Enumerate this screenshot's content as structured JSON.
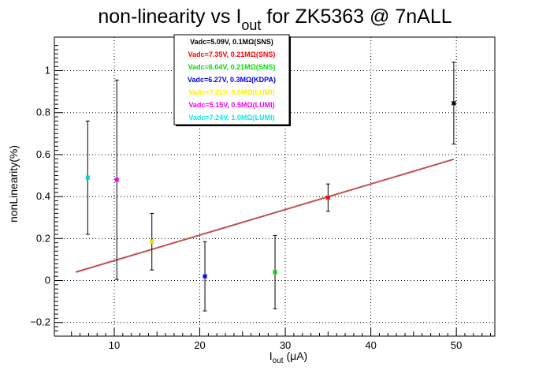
{
  "chart_data": {
    "type": "scatter",
    "title_main": "non-linearity vs I",
    "title_sub": "out",
    "title_tail": " for ZK5363 @ 7nALL",
    "xlabel_main": "I",
    "xlabel_sub": "out",
    "xlabel_tail": " (μA)",
    "ylabel": "nonLinearity(%)",
    "xlim": [
      3,
      54.5
    ],
    "ylim": [
      -0.265,
      1.16
    ],
    "grid": true,
    "x_ticks": [
      10,
      20,
      30,
      40,
      50
    ],
    "x_tick_labels": [
      "10",
      "20",
      "30",
      "40",
      "50"
    ],
    "y_ticks": [
      -0.2,
      0,
      0.2,
      0.4,
      0.6,
      0.8,
      1
    ],
    "y_tick_labels": [
      "−0.2",
      "0",
      "0.2",
      "0.4",
      "0.6",
      "0.8",
      "1"
    ],
    "legend_position": "top-center",
    "legend": [
      {
        "label": "Vadc=5.09V, 0.1MΩ(SNS)",
        "color": "#000000"
      },
      {
        "label": "Vadc=7.35V, 0.21MΩ(SNS)",
        "color": "#ff0000"
      },
      {
        "label": "Vadc=6.04V, 0.21MΩ(SNS)",
        "color": "#00dd00"
      },
      {
        "label": "Vadc=6.27V, 0.3MΩ(KDPA)",
        "color": "#0000ee"
      },
      {
        "label": "Vadc=7.21V, 9.5MΩ(LUMI)",
        "color": "#ffee00"
      },
      {
        "label": "Vadc=5.15V, 0.5MΩ(LUMI)",
        "color": "#ee00ee"
      },
      {
        "label": "Vadc=7.24V, 1.0MΩ(LUMI)",
        "color": "#00eeee"
      }
    ],
    "points": [
      {
        "x": 6.9,
        "y": 0.49,
        "err": 0.27,
        "color": "#00cccc"
      },
      {
        "x": 10.3,
        "y": 0.48,
        "err": 0.475,
        "color": "#ee00ee"
      },
      {
        "x": 14.4,
        "y": 0.185,
        "err": 0.135,
        "color": "#e6d800"
      },
      {
        "x": 20.6,
        "y": 0.02,
        "err": 0.165,
        "color": "#0000ee"
      },
      {
        "x": 28.8,
        "y": 0.04,
        "err": 0.175,
        "color": "#00cc00"
      },
      {
        "x": 35.0,
        "y": 0.395,
        "err": 0.065,
        "color": "#ff0000"
      },
      {
        "x": 49.7,
        "y": 0.845,
        "err": 0.195,
        "color": "#000000"
      }
    ],
    "fit_line": {
      "x": [
        5.5,
        49.7
      ],
      "y": [
        0.04,
        0.578
      ],
      "color": "#c0504d"
    }
  }
}
